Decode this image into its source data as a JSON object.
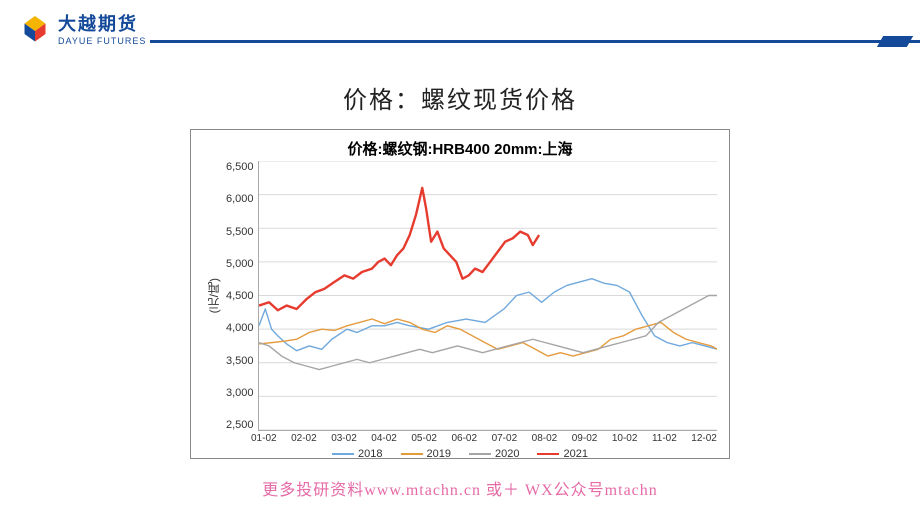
{
  "brand": {
    "cn": "大越期货",
    "en": "DAYUE FUTURES",
    "primary_color": "#154a9a",
    "logo_colors": {
      "top": "#f5b400",
      "right": "#e63b2e",
      "bottom": "#154a9a",
      "left": "#154a9a"
    }
  },
  "page_title": "价格：螺纹现货价格",
  "chart": {
    "type": "line",
    "title": "价格:螺纹钢:HRB400 20mm:上海",
    "title_fontsize": 15,
    "ylabel": "(元/吨)",
    "ylim": [
      2500,
      6500
    ],
    "ytick_step": 500,
    "yticks": [
      6500,
      6000,
      5500,
      5000,
      4500,
      4000,
      3500,
      3000,
      2500
    ],
    "x_labels": [
      "01-02",
      "02-02",
      "03-02",
      "04-02",
      "05-02",
      "06-02",
      "07-02",
      "08-02",
      "09-02",
      "10-02",
      "11-02",
      "12-02"
    ],
    "grid_color": "#d9d9d9",
    "background_color": "#ffffff",
    "border_color": "#888888",
    "line_width_default": 1.4,
    "line_width_highlight": 2.4,
    "series": [
      {
        "name": "2018",
        "color": "#6fa8dc",
        "width": 1.4,
        "data": [
          [
            0,
            4050
          ],
          [
            5,
            4300
          ],
          [
            10,
            4000
          ],
          [
            15,
            3900
          ],
          [
            22,
            3780
          ],
          [
            30,
            3680
          ],
          [
            40,
            3750
          ],
          [
            50,
            3700
          ],
          [
            58,
            3850
          ],
          [
            70,
            4000
          ],
          [
            78,
            3950
          ],
          [
            90,
            4050
          ],
          [
            100,
            4050
          ],
          [
            110,
            4100
          ],
          [
            120,
            4050
          ],
          [
            135,
            4000
          ],
          [
            150,
            4100
          ],
          [
            165,
            4150
          ],
          [
            180,
            4100
          ],
          [
            195,
            4300
          ],
          [
            205,
            4500
          ],
          [
            215,
            4550
          ],
          [
            225,
            4400
          ],
          [
            235,
            4550
          ],
          [
            245,
            4650
          ],
          [
            255,
            4700
          ],
          [
            265,
            4750
          ],
          [
            275,
            4680
          ],
          [
            285,
            4650
          ],
          [
            295,
            4550
          ],
          [
            305,
            4200
          ],
          [
            315,
            3900
          ],
          [
            325,
            3800
          ],
          [
            335,
            3750
          ],
          [
            345,
            3800
          ],
          [
            355,
            3750
          ],
          [
            365,
            3700
          ]
        ]
      },
      {
        "name": "2019",
        "color": "#e49b3e",
        "width": 1.4,
        "data": [
          [
            0,
            3780
          ],
          [
            10,
            3800
          ],
          [
            20,
            3820
          ],
          [
            30,
            3850
          ],
          [
            40,
            3950
          ],
          [
            50,
            4000
          ],
          [
            60,
            3980
          ],
          [
            70,
            4050
          ],
          [
            80,
            4100
          ],
          [
            90,
            4150
          ],
          [
            100,
            4080
          ],
          [
            110,
            4150
          ],
          [
            120,
            4100
          ],
          [
            130,
            4000
          ],
          [
            140,
            3950
          ],
          [
            150,
            4050
          ],
          [
            160,
            4000
          ],
          [
            170,
            3900
          ],
          [
            180,
            3800
          ],
          [
            190,
            3700
          ],
          [
            200,
            3750
          ],
          [
            210,
            3800
          ],
          [
            220,
            3700
          ],
          [
            230,
            3600
          ],
          [
            240,
            3650
          ],
          [
            250,
            3600
          ],
          [
            260,
            3650
          ],
          [
            270,
            3700
          ],
          [
            280,
            3850
          ],
          [
            290,
            3900
          ],
          [
            300,
            4000
          ],
          [
            310,
            4050
          ],
          [
            320,
            4100
          ],
          [
            330,
            3950
          ],
          [
            340,
            3850
          ],
          [
            350,
            3800
          ],
          [
            360,
            3750
          ],
          [
            365,
            3700
          ]
        ]
      },
      {
        "name": "2020",
        "color": "#a5a5a5",
        "width": 1.4,
        "data": [
          [
            0,
            3800
          ],
          [
            8,
            3750
          ],
          [
            18,
            3600
          ],
          [
            28,
            3500
          ],
          [
            38,
            3450
          ],
          [
            48,
            3400
          ],
          [
            58,
            3450
          ],
          [
            68,
            3500
          ],
          [
            78,
            3550
          ],
          [
            88,
            3500
          ],
          [
            98,
            3550
          ],
          [
            108,
            3600
          ],
          [
            118,
            3650
          ],
          [
            128,
            3700
          ],
          [
            138,
            3650
          ],
          [
            148,
            3700
          ],
          [
            158,
            3750
          ],
          [
            168,
            3700
          ],
          [
            178,
            3650
          ],
          [
            188,
            3700
          ],
          [
            198,
            3750
          ],
          [
            208,
            3800
          ],
          [
            218,
            3850
          ],
          [
            228,
            3800
          ],
          [
            238,
            3750
          ],
          [
            248,
            3700
          ],
          [
            258,
            3650
          ],
          [
            268,
            3700
          ],
          [
            278,
            3750
          ],
          [
            288,
            3800
          ],
          [
            298,
            3850
          ],
          [
            308,
            3900
          ],
          [
            318,
            4100
          ],
          [
            328,
            4200
          ],
          [
            338,
            4300
          ],
          [
            348,
            4400
          ],
          [
            358,
            4500
          ],
          [
            365,
            4500
          ]
        ]
      },
      {
        "name": "2021",
        "color": "#e63b2e",
        "width": 2.4,
        "data": [
          [
            0,
            4350
          ],
          [
            8,
            4400
          ],
          [
            15,
            4280
          ],
          [
            22,
            4350
          ],
          [
            30,
            4300
          ],
          [
            38,
            4450
          ],
          [
            45,
            4550
          ],
          [
            52,
            4600
          ],
          [
            60,
            4700
          ],
          [
            68,
            4800
          ],
          [
            75,
            4750
          ],
          [
            82,
            4850
          ],
          [
            90,
            4900
          ],
          [
            95,
            5000
          ],
          [
            100,
            5050
          ],
          [
            105,
            4950
          ],
          [
            110,
            5100
          ],
          [
            115,
            5200
          ],
          [
            120,
            5400
          ],
          [
            125,
            5700
          ],
          [
            130,
            6100
          ],
          [
            133,
            5800
          ],
          [
            137,
            5300
          ],
          [
            142,
            5450
          ],
          [
            147,
            5200
          ],
          [
            152,
            5100
          ],
          [
            157,
            5000
          ],
          [
            162,
            4750
          ],
          [
            167,
            4800
          ],
          [
            172,
            4900
          ],
          [
            178,
            4850
          ],
          [
            184,
            5000
          ],
          [
            190,
            5150
          ],
          [
            196,
            5300
          ],
          [
            202,
            5350
          ],
          [
            208,
            5450
          ],
          [
            214,
            5400
          ],
          [
            218,
            5250
          ],
          [
            223,
            5400
          ]
        ]
      }
    ]
  },
  "footer": "更多投研资料www.mtachn.cn 或＋ WX公众号mtachn"
}
